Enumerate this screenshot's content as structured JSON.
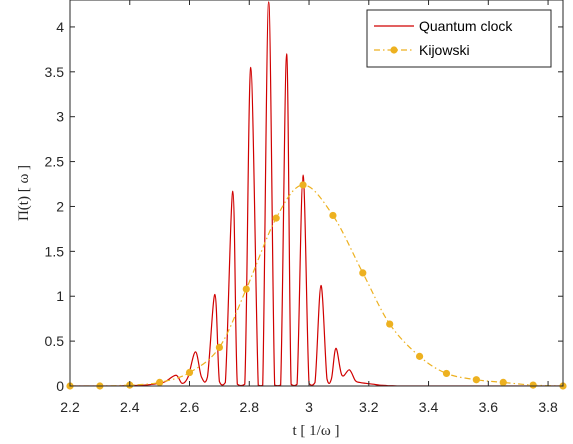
{
  "chart_data": {
    "type": "line",
    "xlabel": "t [ 1/ω ]",
    "ylabel": "Π(t) [ ω ]",
    "xlim": [
      2.2,
      3.85
    ],
    "ylim": [
      0,
      4.3
    ],
    "xticks": [
      2.2,
      2.4,
      2.6,
      2.8,
      3,
      3.2,
      3.4,
      3.6,
      3.8
    ],
    "xtick_labels": [
      "2.2",
      "2.4",
      "2.6",
      "2.8",
      "3",
      "3.2",
      "3.4",
      "3.6",
      "3.8"
    ],
    "yticks": [
      0,
      0.5,
      1,
      1.5,
      2,
      2.5,
      3,
      3.5,
      4
    ],
    "ytick_labels": [
      "0",
      "0.5",
      "1",
      "1.5",
      "2",
      "2.5",
      "3",
      "3.5",
      "4"
    ],
    "grid": false,
    "legend_position": "top-right",
    "series": [
      {
        "name": "Quantum clock",
        "color": "#d00000",
        "style": "solid",
        "x": [
          2.2,
          2.25,
          2.3,
          2.35,
          2.4,
          2.45,
          2.5,
          2.52,
          2.555,
          2.575,
          2.595,
          2.62,
          2.64,
          2.66,
          2.685,
          2.7,
          2.72,
          2.745,
          2.76,
          2.785,
          2.805,
          2.83,
          2.845,
          2.865,
          2.885,
          2.905,
          2.925,
          2.94,
          2.96,
          2.98,
          3.0,
          3.02,
          3.04,
          3.06,
          3.075,
          3.09,
          3.11,
          3.135,
          3.155,
          3.17,
          3.19,
          3.215,
          3.235,
          3.26,
          3.28,
          3.3,
          3.32,
          3.345,
          3.36,
          3.38,
          3.405,
          3.425,
          3.45,
          3.47,
          3.49,
          3.52,
          3.55,
          3.6,
          3.65,
          3.7,
          3.75,
          3.8,
          3.85
        ],
        "y": [
          0,
          0,
          0,
          0,
          0.005,
          0.01,
          0.03,
          0.05,
          0.12,
          0.03,
          0.1,
          0.38,
          0.1,
          0.1,
          1.02,
          0.05,
          0.04,
          2.17,
          0.02,
          0.02,
          3.55,
          0.01,
          0.01,
          4.28,
          0.01,
          0.01,
          3.7,
          0.02,
          0.02,
          2.35,
          0.03,
          0.04,
          1.12,
          0.08,
          0.08,
          0.42,
          0.12,
          0.18,
          0.06,
          0.04,
          0.03,
          0.02,
          0.01,
          0.005,
          0.003,
          0.0,
          0.0,
          0.0,
          0.0,
          0.0,
          0.0,
          0.0,
          0.0,
          0.0,
          0.0,
          0.0,
          0.0,
          0.0,
          0.0,
          0.0,
          0.0,
          0.0,
          0.0
        ]
      },
      {
        "name": "Kijowski",
        "color": "#EDB120",
        "style": "dash-dot",
        "x": [
          2.2,
          2.3,
          2.4,
          2.5,
          2.6,
          2.7,
          2.79,
          2.89,
          2.98,
          3.08,
          3.18,
          3.27,
          3.37,
          3.46,
          3.56,
          3.65,
          3.75,
          3.85
        ],
        "y": [
          0.0,
          0.0,
          0.01,
          0.04,
          0.15,
          0.43,
          1.08,
          1.87,
          2.24,
          1.9,
          1.26,
          0.69,
          0.33,
          0.14,
          0.07,
          0.04,
          0.01,
          0.0
        ]
      }
    ]
  }
}
